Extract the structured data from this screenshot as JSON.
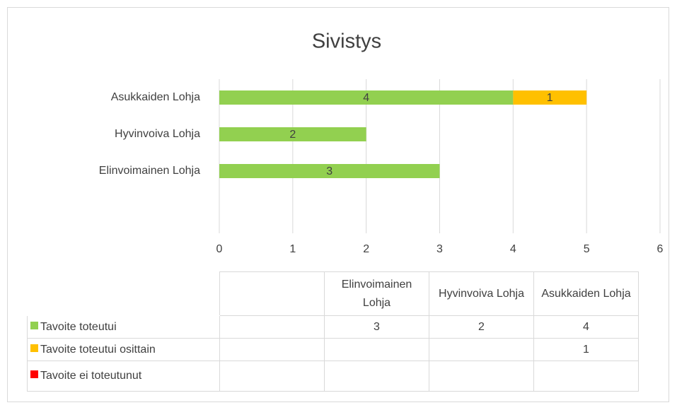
{
  "chart_data": {
    "type": "bar",
    "orientation": "horizontal",
    "stacked": true,
    "title": "Sivistys",
    "categories": [
      "Elinvoimainen Lohja",
      "Hyvinvoiva Lohja",
      "Asukkaiden Lohja"
    ],
    "series": [
      {
        "name": "Tavoite toteutui",
        "color": "#92d050",
        "values": [
          3,
          2,
          4
        ]
      },
      {
        "name": "Tavoite toteutui osittain",
        "color": "#ffc000",
        "values": [
          null,
          null,
          1
        ]
      },
      {
        "name": "Tavoite ei toteutunut",
        "color": "#ff0000",
        "values": [
          null,
          null,
          null
        ]
      }
    ],
    "xlim": [
      0,
      6
    ],
    "xticks": [
      0,
      1,
      2,
      3,
      4,
      5,
      6
    ],
    "grid": true,
    "data_table": true
  }
}
